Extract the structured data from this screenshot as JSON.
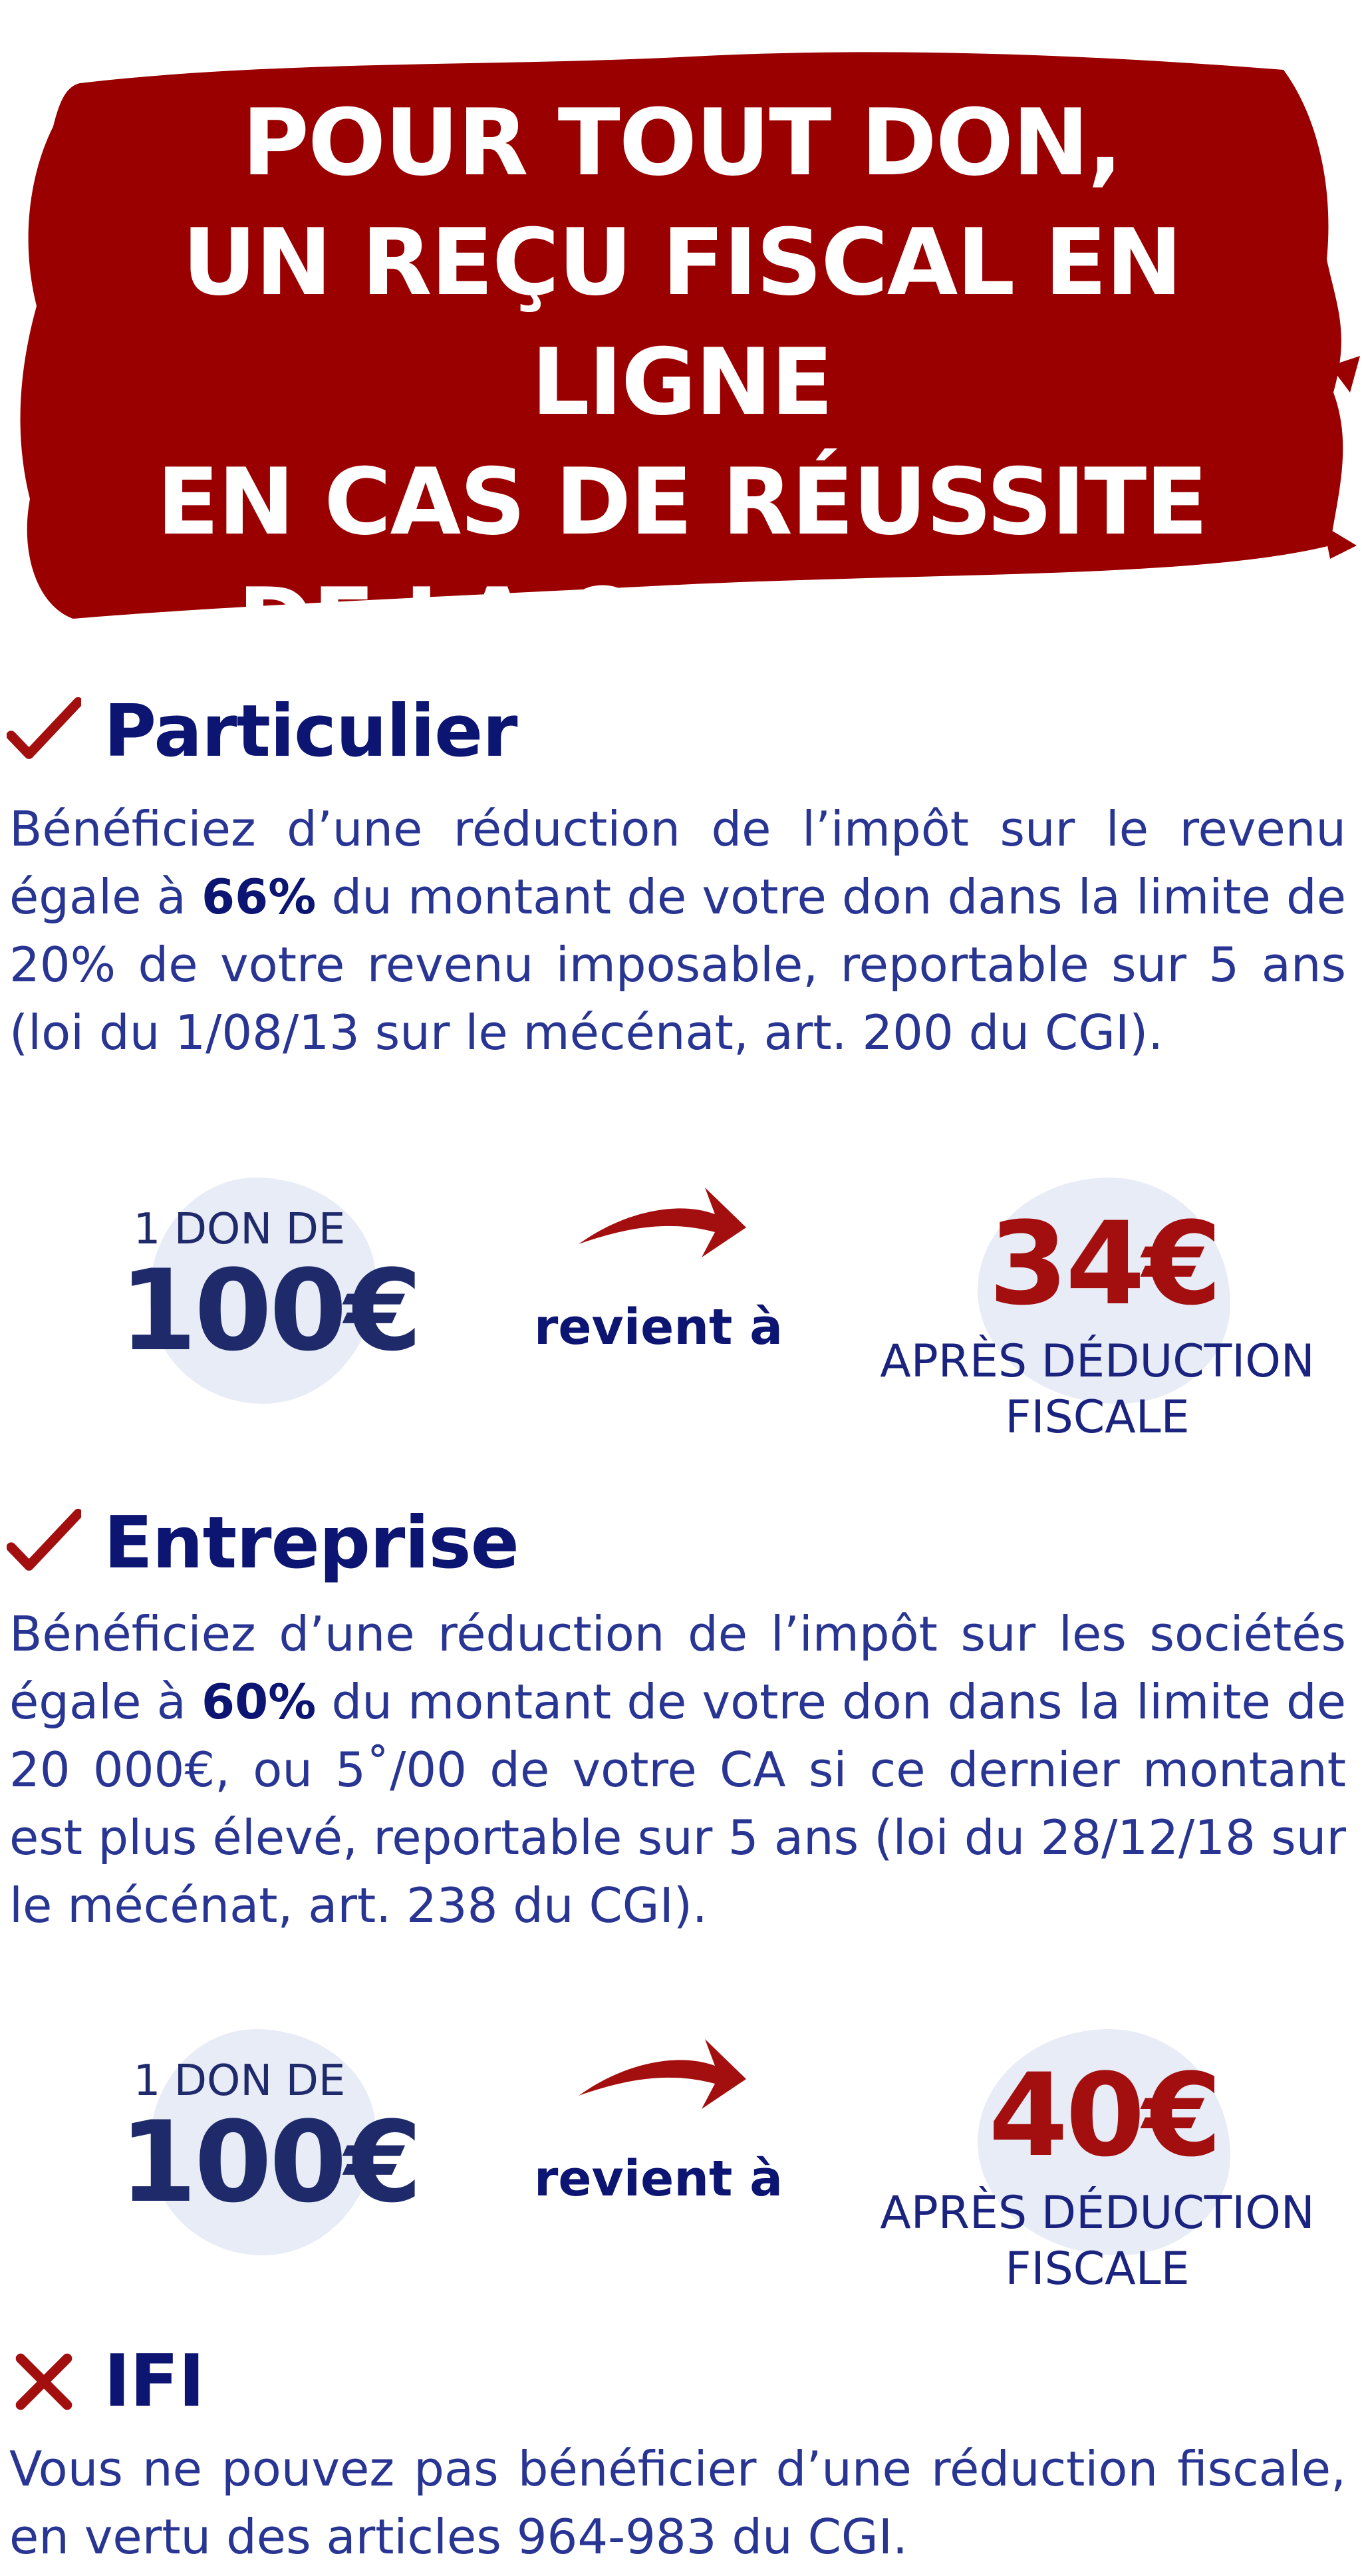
{
  "colors": {
    "banner_red": "#9b0000",
    "navy": "#0d1573",
    "text_blue": "#283593",
    "accent_red": "#a30f0f",
    "blob": "#e8ecf6"
  },
  "banner": {
    "lines": [
      "POUR TOUT DON,",
      "UN REÇU FISCAL EN LIGNE",
      "EN CAS DE RÉUSSITE",
      "DE LA CAMPAGNE"
    ]
  },
  "particulier": {
    "icon": "check-icon",
    "title": "Particulier",
    "text_before": "Bénéficiez d’une réduction de l’impôt sur le revenu égale à ",
    "highlight": "66%",
    "text_after": " du montant de votre don dans la limite de 20% de votre revenu imposable, reportable sur 5 ans (loi du 1/08/13 sur le mécénat, art. 200 du CGI).",
    "calc": {
      "don_label": "1 DON DE",
      "don_amount": "100€",
      "arrow_icon": "curved-arrow-icon",
      "revient": "revient à",
      "result_amount": "34€",
      "result_label": "APRÈS DÉDUCTION\nFISCALE"
    }
  },
  "entreprise": {
    "icon": "check-icon",
    "title": "Entreprise",
    "text_before": "Bénéficiez d’une réduction de l’impôt sur les sociétés égale à ",
    "highlight": "60%",
    "text_after": " du montant de votre don dans la limite de 20 000€, ou 5˚/00 de votre CA si ce dernier montant est plus élevé, reportable sur 5 ans (loi du 28/12/18 sur le mécénat, art. 238 du CGI).",
    "calc": {
      "don_label": "1 DON DE",
      "don_amount": "100€",
      "arrow_icon": "curved-arrow-icon",
      "revient": "revient à",
      "result_amount": "40€",
      "result_label": "APRÈS DÉDUCTION\nFISCALE"
    }
  },
  "ifi": {
    "icon": "cross-icon",
    "title": "IFI",
    "text": "Vous ne pouvez pas bénéficier d’une réduction fiscale, en vertu des articles 964-983 du CGI."
  }
}
